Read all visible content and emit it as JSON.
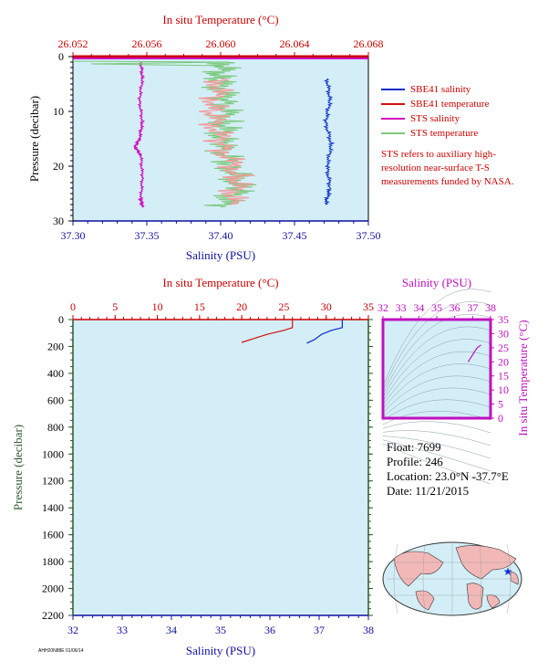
{
  "colors": {
    "bg": "#d4eef7",
    "salinity": "#0a2cc8",
    "temperature": "#d41010",
    "sts_salinity": "#d010c0",
    "sts_temperature": "#7cc87c",
    "axis_blue": "#1010a0",
    "axis_red": "#cc0000",
    "axis_green": "#2a5a2a",
    "axis_magenta": "#c010c0"
  },
  "chart_data": [
    {
      "id": "upper",
      "type": "line",
      "top_axis": {
        "label": "In situ Temperature (°C)",
        "ticks": [
          "26.052",
          "26.056",
          "26.060",
          "26.064",
          "26.068"
        ],
        "range": [
          26.052,
          26.068
        ]
      },
      "bottom_axis": {
        "label": "Salinity (PSU)",
        "ticks": [
          "37.30",
          "37.35",
          "37.40",
          "37.45",
          "37.50"
        ],
        "range": [
          37.3,
          37.5
        ]
      },
      "left_axis": {
        "label": "Pressure (decibar)",
        "ticks": [
          "0",
          "10",
          "20",
          "30"
        ],
        "range": [
          0,
          30
        ]
      },
      "series": [
        {
          "name": "SBE41 salinity",
          "axis": "salinity",
          "points": [
            [
              37.472,
              4
            ],
            [
              37.474,
              8
            ],
            [
              37.471,
              12
            ],
            [
              37.475,
              16
            ],
            [
              37.472,
              20
            ],
            [
              37.474,
              24
            ],
            [
              37.471,
              27
            ]
          ]
        },
        {
          "name": "SBE41 temperature",
          "axis": "temperature",
          "points": [
            [
              26.06,
              4
            ],
            [
              26.0595,
              10
            ],
            [
              26.06,
              16
            ],
            [
              26.061,
              22
            ],
            [
              26.0605,
              27
            ]
          ]
        },
        {
          "name": "STS salinity",
          "axis": "salinity",
          "points": [
            [
              37.346,
              1
            ],
            [
              37.347,
              4
            ],
            [
              37.345,
              8
            ],
            [
              37.347,
              12
            ],
            [
              37.345,
              15
            ],
            [
              37.342,
              16.5
            ],
            [
              37.346,
              18
            ],
            [
              37.347,
              22
            ],
            [
              37.346,
              26
            ],
            [
              37.347,
              27.5
            ]
          ]
        },
        {
          "name": "STS temperature",
          "axis": "temperature",
          "points": [
            [
              26.0603,
              1
            ],
            [
              26.0598,
              4
            ],
            [
              26.0602,
              8
            ],
            [
              26.0603,
              12
            ],
            [
              26.0599,
              16
            ],
            [
              26.0606,
              20
            ],
            [
              26.061,
              24
            ],
            [
              26.06,
              27.5
            ]
          ]
        }
      ],
      "legend": [
        "SBE41 salinity",
        "SBE41 temperature",
        "STS salinity",
        "STS temperature"
      ],
      "annotation": "STS refers to auxiliary high-resolution near-surface T-S measurements funded by NASA."
    },
    {
      "id": "lower",
      "type": "line",
      "top_axis": {
        "label": "In situ Temperature (°C)",
        "ticks": [
          "0",
          "5",
          "10",
          "15",
          "20",
          "25",
          "30",
          "35"
        ],
        "range": [
          0,
          35
        ]
      },
      "bottom_axis": {
        "label": "Salinity (PSU)",
        "ticks": [
          "32",
          "33",
          "34",
          "35",
          "36",
          "37",
          "38"
        ],
        "range": [
          32,
          38
        ]
      },
      "left_axis": {
        "label": "Pressure (decibar)",
        "ticks": [
          "0",
          "200",
          "400",
          "600",
          "800",
          "1000",
          "1200",
          "1400",
          "1600",
          "1800",
          "2000",
          "2200"
        ],
        "range": [
          0,
          2200
        ]
      },
      "series": [
        {
          "name": "temperature",
          "axis": "temperature",
          "points": [
            [
              26.0,
              0
            ],
            [
              26.0,
              60
            ],
            [
              25.0,
              80
            ],
            [
              23.0,
              110
            ],
            [
              21.5,
              140
            ],
            [
              20.0,
              170
            ]
          ]
        },
        {
          "name": "salinity",
          "axis": "salinity",
          "points": [
            [
              37.47,
              0
            ],
            [
              37.47,
              60
            ],
            [
              37.25,
              80
            ],
            [
              37.05,
              110
            ],
            [
              36.9,
              150
            ],
            [
              36.75,
              175
            ]
          ]
        }
      ]
    },
    {
      "id": "ts",
      "type": "line",
      "top_axis": {
        "label": "Salinity (PSU)",
        "ticks": [
          "32",
          "33",
          "34",
          "35",
          "36",
          "37",
          "38"
        ],
        "range": [
          32,
          38
        ]
      },
      "right_axis": {
        "label": "In situ Temperature (°C)",
        "ticks": [
          "0",
          "5",
          "10",
          "15",
          "20",
          "25",
          "30",
          "35"
        ],
        "range": [
          0,
          35
        ]
      },
      "series": [
        {
          "name": "T-S",
          "points": [
            [
              36.75,
              20
            ],
            [
              36.9,
              21.5
            ],
            [
              37.05,
              23
            ],
            [
              37.25,
              25
            ],
            [
              37.47,
              26
            ]
          ]
        }
      ]
    }
  ],
  "info": {
    "float": "Float:  7699",
    "profile": "Profile:  246",
    "location": "Location:  23.0°N  -37.7°E",
    "date": "Date:  11/21/2015"
  },
  "footer": "AHH20N88E 01/06/14"
}
